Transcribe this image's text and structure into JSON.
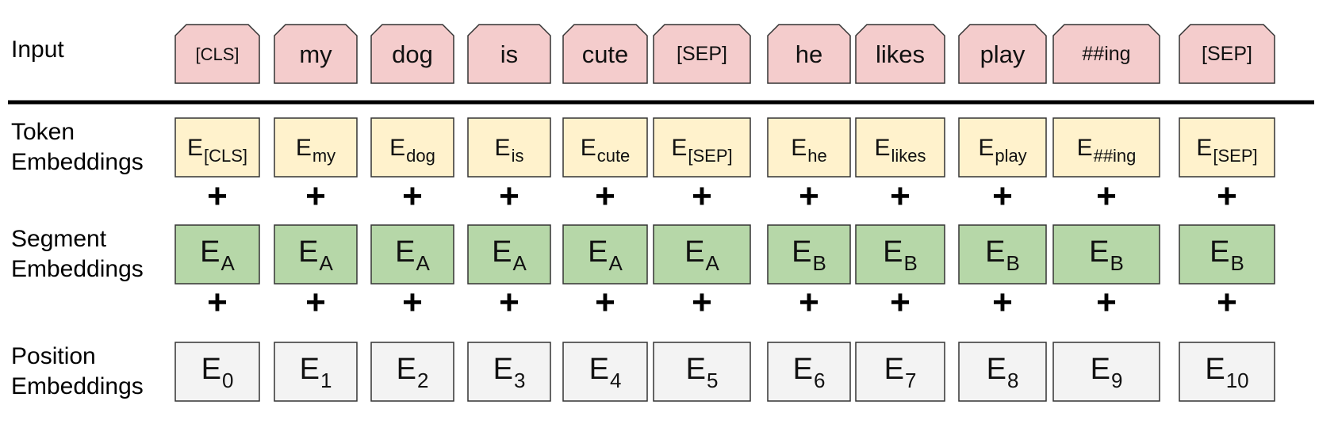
{
  "row_labels": {
    "input": [
      "Input"
    ],
    "token": [
      "Token",
      "Embeddings"
    ],
    "segment": [
      "Segment",
      "Embeddings"
    ],
    "position": [
      "Position",
      "Embeddings"
    ]
  },
  "columns": [
    {
      "input": "[CLS]",
      "token_base": "E",
      "token_sub": "[CLS]",
      "segment_base": "E",
      "segment_sub": "A",
      "position_base": "E",
      "position_sub": "0"
    },
    {
      "input": "my",
      "token_base": "E",
      "token_sub": "my",
      "segment_base": "E",
      "segment_sub": "A",
      "position_base": "E",
      "position_sub": "1"
    },
    {
      "input": "dog",
      "token_base": "E",
      "token_sub": "dog",
      "segment_base": "E",
      "segment_sub": "A",
      "position_base": "E",
      "position_sub": "2"
    },
    {
      "input": "is",
      "token_base": "E",
      "token_sub": "is",
      "segment_base": "E",
      "segment_sub": "A",
      "position_base": "E",
      "position_sub": "3"
    },
    {
      "input": "cute",
      "token_base": "E",
      "token_sub": "cute",
      "segment_base": "E",
      "segment_sub": "A",
      "position_base": "E",
      "position_sub": "4"
    },
    {
      "input": "[SEP]",
      "token_base": "E",
      "token_sub": "[SEP]",
      "segment_base": "E",
      "segment_sub": "A",
      "position_base": "E",
      "position_sub": "5"
    },
    {
      "input": "he",
      "token_base": "E",
      "token_sub": "he",
      "segment_base": "E",
      "segment_sub": "B",
      "position_base": "E",
      "position_sub": "6"
    },
    {
      "input": "likes",
      "token_base": "E",
      "token_sub": "likes",
      "segment_base": "E",
      "segment_sub": "B",
      "position_base": "E",
      "position_sub": "7"
    },
    {
      "input": "play",
      "token_base": "E",
      "token_sub": "play",
      "segment_base": "E",
      "segment_sub": "B",
      "position_base": "E",
      "position_sub": "8"
    },
    {
      "input": "##ing",
      "token_base": "E",
      "token_sub": "##ing",
      "segment_base": "E",
      "segment_sub": "B",
      "position_base": "E",
      "position_sub": "9"
    },
    {
      "input": "[SEP]",
      "token_base": "E",
      "token_sub": "[SEP]",
      "segment_base": "E",
      "segment_sub": "B",
      "position_base": "E",
      "position_sub": "10"
    }
  ],
  "operator": "+",
  "colors": {
    "input_fill": "#f4cccc",
    "token_fill": "#fff2cc",
    "segment_fill": "#b6d7a8",
    "position_fill": "#f3f3f3",
    "stroke": "#333333",
    "divider": "#000000"
  }
}
